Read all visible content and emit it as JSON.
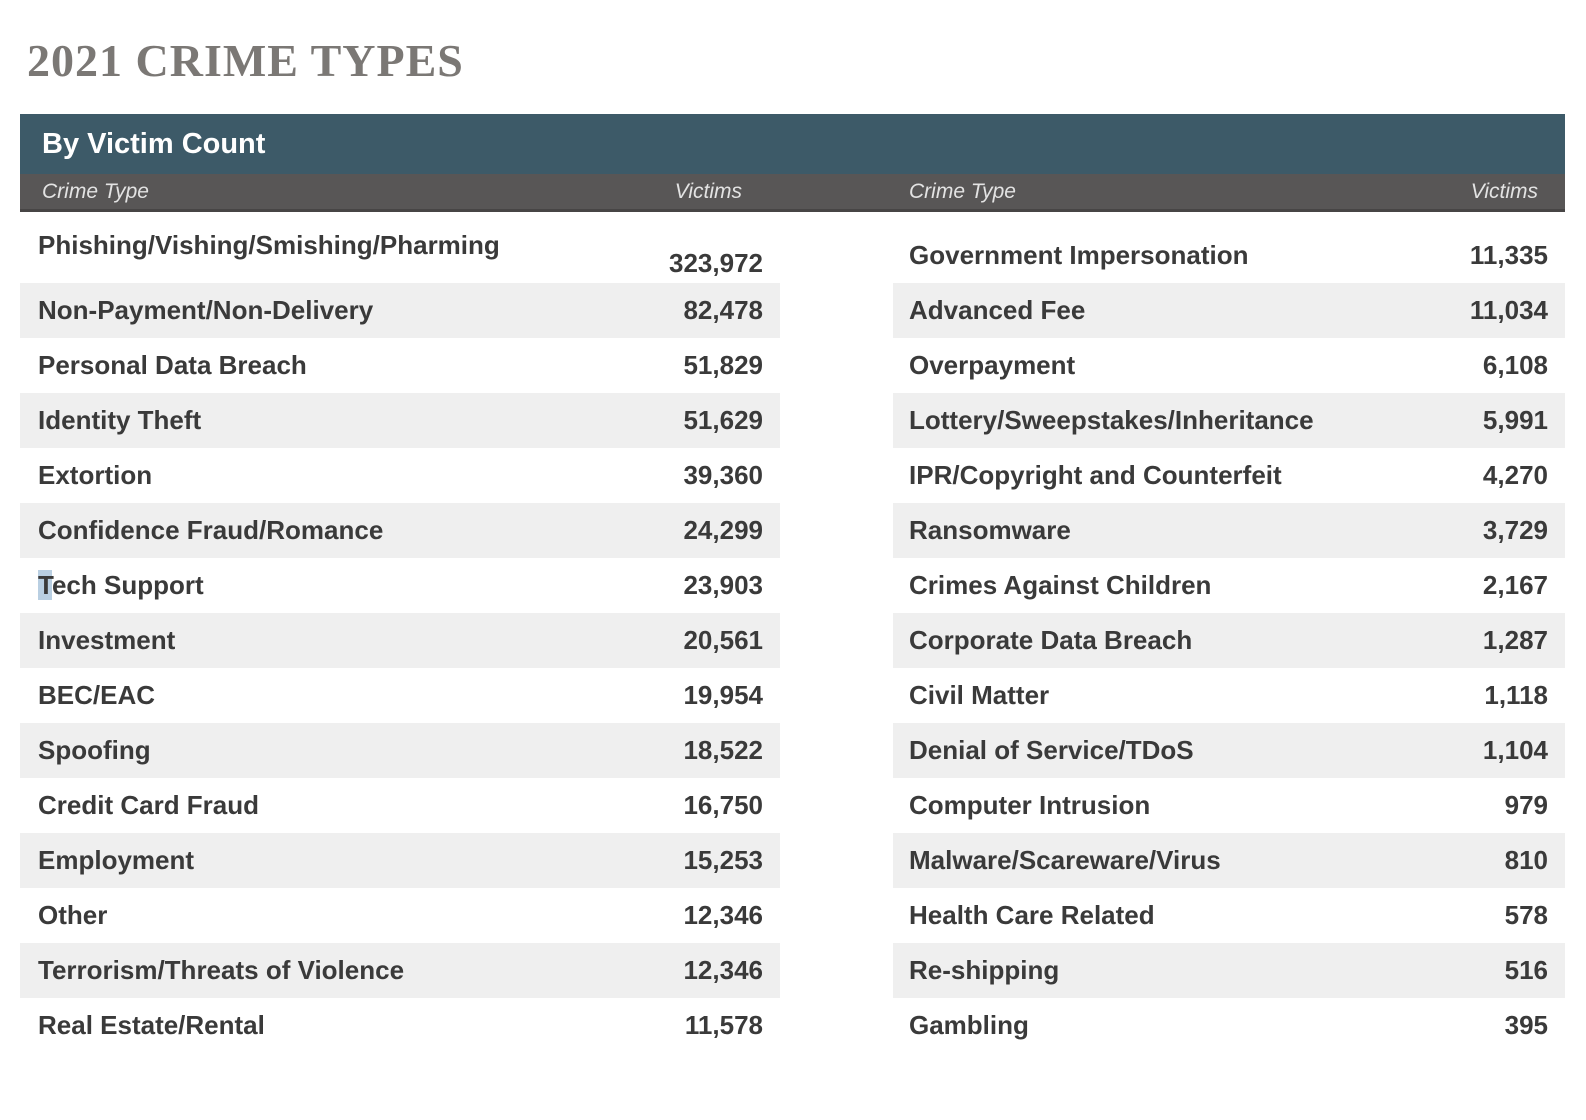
{
  "title": "2021 CRIME TYPES",
  "table": {
    "header": "By Victim Count",
    "columns": [
      "Crime Type",
      "Victims"
    ],
    "left_rows": [
      {
        "crime": "Phishing/Vishing/Smishing/Pharming",
        "victims": "323,972",
        "value_low": true
      },
      {
        "crime": "Non-Payment/Non-Delivery",
        "victims": "82,478"
      },
      {
        "crime": "Personal Data Breach",
        "victims": "51,829"
      },
      {
        "crime": "Identity Theft",
        "victims": "51,629"
      },
      {
        "crime": "Extortion",
        "victims": "39,360"
      },
      {
        "crime": "Confidence Fraud/Romance",
        "victims": "24,299"
      },
      {
        "crime": "Tech Support",
        "victims": "23,903",
        "highlight_first_char": true
      },
      {
        "crime": "Investment",
        "victims": "20,561"
      },
      {
        "crime": "BEC/EAC",
        "victims": "19,954"
      },
      {
        "crime": "Spoofing",
        "victims": "18,522"
      },
      {
        "crime": "Credit Card Fraud",
        "victims": "16,750"
      },
      {
        "crime": "Employment",
        "victims": "15,253"
      },
      {
        "crime": "Other",
        "victims": "12,346"
      },
      {
        "crime": "Terrorism/Threats of Violence",
        "victims": "12,346"
      },
      {
        "crime": "Real Estate/Rental",
        "victims": "11,578"
      }
    ],
    "right_rows": [
      {
        "crime": "Government Impersonation",
        "victims": "11,335"
      },
      {
        "crime": "Advanced Fee",
        "victims": "11,034"
      },
      {
        "crime": "Overpayment",
        "victims": "6,108"
      },
      {
        "crime": "Lottery/Sweepstakes/Inheritance",
        "victims": "5,991"
      },
      {
        "crime": "IPR/Copyright and Counterfeit",
        "victims": "4,270"
      },
      {
        "crime": "Ransomware",
        "victims": "3,729"
      },
      {
        "crime": "Crimes Against Children",
        "victims": "2,167"
      },
      {
        "crime": "Corporate Data Breach",
        "victims": "1,287"
      },
      {
        "crime": "Civil Matter",
        "victims": "1,118"
      },
      {
        "crime": "Denial of Service/TDoS",
        "victims": "1,104"
      },
      {
        "crime": "Computer Intrusion",
        "victims": "979"
      },
      {
        "crime": "Malware/Scareware/Virus",
        "victims": "810"
      },
      {
        "crime": "Health Care Related",
        "victims": "578"
      },
      {
        "crime": "Re-shipping",
        "victims": "516"
      },
      {
        "crime": "Gambling",
        "victims": "395"
      }
    ]
  },
  "colors": {
    "title_text": "#7b7875",
    "header_bar": "#3d5a68",
    "subheader_bar": "#585656",
    "subheader_border": "#474545",
    "stripe": "#efefef",
    "row_text": "#3a3a3a",
    "selection_highlight": "#b9cfe2"
  },
  "chart_data": {
    "type": "table",
    "title": "2021 CRIME TYPES",
    "subtitle": "By Victim Count",
    "columns": [
      "Crime Type",
      "Victims"
    ],
    "rows": [
      [
        "Phishing/Vishing/Smishing/Pharming",
        323972
      ],
      [
        "Non-Payment/Non-Delivery",
        82478
      ],
      [
        "Personal Data Breach",
        51829
      ],
      [
        "Identity Theft",
        51629
      ],
      [
        "Extortion",
        39360
      ],
      [
        "Confidence Fraud/Romance",
        24299
      ],
      [
        "Tech Support",
        23903
      ],
      [
        "Investment",
        20561
      ],
      [
        "BEC/EAC",
        19954
      ],
      [
        "Spoofing",
        18522
      ],
      [
        "Credit Card Fraud",
        16750
      ],
      [
        "Employment",
        15253
      ],
      [
        "Other",
        12346
      ],
      [
        "Terrorism/Threats of Violence",
        12346
      ],
      [
        "Real Estate/Rental",
        11578
      ],
      [
        "Government Impersonation",
        11335
      ],
      [
        "Advanced Fee",
        11034
      ],
      [
        "Overpayment",
        6108
      ],
      [
        "Lottery/Sweepstakes/Inheritance",
        5991
      ],
      [
        "IPR/Copyright and Counterfeit",
        4270
      ],
      [
        "Ransomware",
        3729
      ],
      [
        "Crimes Against Children",
        2167
      ],
      [
        "Corporate Data Breach",
        1287
      ],
      [
        "Civil Matter",
        1118
      ],
      [
        "Denial of Service/TDoS",
        1104
      ],
      [
        "Computer Intrusion",
        979
      ],
      [
        "Malware/Scareware/Virus",
        810
      ],
      [
        "Health Care Related",
        578
      ],
      [
        "Re-shipping",
        516
      ],
      [
        "Gambling",
        395
      ]
    ]
  }
}
